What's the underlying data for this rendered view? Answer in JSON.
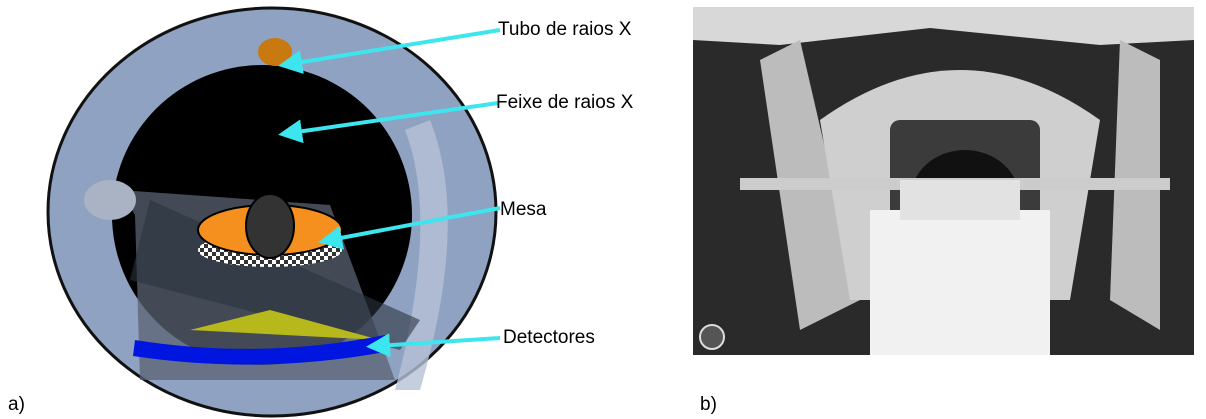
{
  "labels": {
    "tube": "Tubo de raios X",
    "beam": "Feixe de raios X",
    "table": "Mesa",
    "detectors": "Detectores"
  },
  "captions": {
    "a": "a)",
    "b": "b)"
  }
}
